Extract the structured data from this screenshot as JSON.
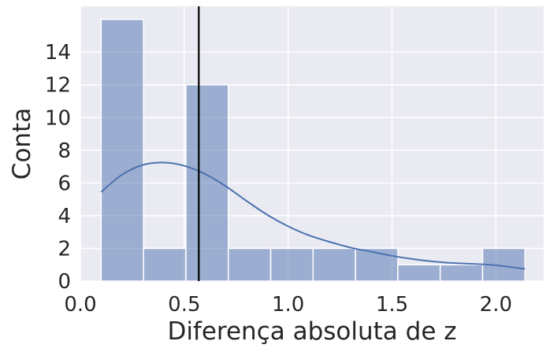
{
  "chart_data": {
    "type": "bar",
    "subtype": "histogram-with-kde",
    "title": "",
    "xlabel": "Diferença absoluta de z",
    "ylabel": "Conta",
    "xlim": [
      0.0,
      2.23
    ],
    "ylim": [
      0,
      16.8
    ],
    "x_ticks": [
      0.0,
      0.5,
      1.0,
      1.5,
      2.0
    ],
    "x_tick_labels": [
      "0.0",
      "0.5",
      "1.0",
      "1.5",
      "2.0"
    ],
    "y_ticks": [
      0,
      2,
      4,
      6,
      8,
      10,
      12,
      14
    ],
    "y_tick_labels": [
      "0",
      "2",
      "4",
      "6",
      "8",
      "10",
      "12",
      "14"
    ],
    "grid": true,
    "style": "seaborn-darkgrid",
    "bins": [
      {
        "x0": 0.1,
        "x1": 0.304,
        "count": 16
      },
      {
        "x0": 0.304,
        "x1": 0.508,
        "count": 2
      },
      {
        "x0": 0.508,
        "x1": 0.712,
        "count": 12
      },
      {
        "x0": 0.712,
        "x1": 0.916,
        "count": 2
      },
      {
        "x0": 0.916,
        "x1": 1.12,
        "count": 2
      },
      {
        "x0": 1.12,
        "x1": 1.324,
        "count": 2
      },
      {
        "x0": 1.324,
        "x1": 1.528,
        "count": 2
      },
      {
        "x0": 1.528,
        "x1": 1.732,
        "count": 1
      },
      {
        "x0": 1.732,
        "x1": 1.936,
        "count": 1
      },
      {
        "x0": 1.936,
        "x1": 2.14,
        "count": 2
      }
    ],
    "kde": {
      "x": [
        0.1,
        0.2,
        0.3,
        0.4,
        0.5,
        0.6,
        0.7,
        0.8,
        0.9,
        1.0,
        1.1,
        1.2,
        1.3,
        1.4,
        1.5,
        1.6,
        1.7,
        1.8,
        1.9,
        2.0,
        2.14
      ],
      "y": [
        5.45,
        6.5,
        7.1,
        7.25,
        7.05,
        6.55,
        5.8,
        4.9,
        4.05,
        3.35,
        2.8,
        2.4,
        2.05,
        1.8,
        1.55,
        1.35,
        1.2,
        1.1,
        1.05,
        0.97,
        0.75
      ]
    },
    "reference_line": {
      "x": 0.57
    },
    "colors": {
      "background": "#eaeaf2",
      "grid": "#ffffff",
      "bar_fill": "#4c72b0",
      "bar_opacity": 0.5,
      "bar_edge": "#ffffff",
      "kde_line": "#4c72b0",
      "reference_line": "#000000",
      "text": "#262626"
    }
  }
}
